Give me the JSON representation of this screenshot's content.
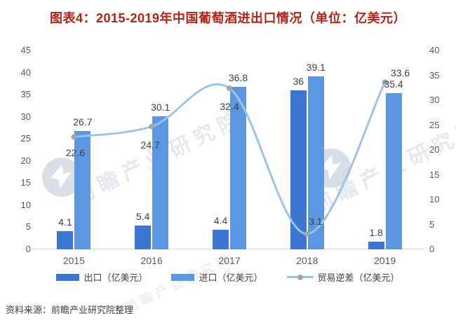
{
  "page": {
    "title": "图表4：2015-2019年中国葡萄酒进出口情况（单位：亿美元）",
    "title_color": "#b02418",
    "source": "资料来源：前瞻产业研究院整理"
  },
  "watermark": {
    "text": "前瞻产业研究院"
  },
  "chart_data": {
    "type": "bar",
    "subtype": "grouped-bars-with-smooth-line",
    "title": "图表4：2015-2019年中国葡萄酒进出口情况（单位：亿美元）",
    "categories": [
      "2015",
      "2016",
      "2017",
      "2018",
      "2019"
    ],
    "series": [
      {
        "name": "出口（亿美元）",
        "type": "bar",
        "axis": "left",
        "color": "#3c76d2",
        "values": [
          4.1,
          5.4,
          4.4,
          36,
          1.8
        ]
      },
      {
        "name": "进口（亿美元）",
        "type": "bar",
        "axis": "left",
        "color": "#5c97e4",
        "values": [
          26.7,
          30.1,
          36.8,
          39.1,
          35.4
        ]
      },
      {
        "name": "贸易逆差（亿美元）",
        "type": "line",
        "axis": "right",
        "color": "#9dc3e6",
        "marker_color": "#a6a6a6",
        "values": [
          22.6,
          24.7,
          32.4,
          3.1,
          33.6
        ]
      }
    ],
    "left_axis": {
      "min": 0,
      "max": 45,
      "step": 5,
      "ticks": [
        0,
        5,
        10,
        15,
        20,
        25,
        30,
        35,
        40,
        45
      ]
    },
    "right_axis": {
      "min": 0,
      "max": 40,
      "step": 5,
      "ticks": [
        0,
        5,
        10,
        15,
        20,
        25,
        30,
        35,
        40
      ]
    },
    "grid": false,
    "legend_position": "bottom",
    "data_labels": true,
    "axis_text_color": "#595959",
    "label_text_color": "#404040"
  }
}
